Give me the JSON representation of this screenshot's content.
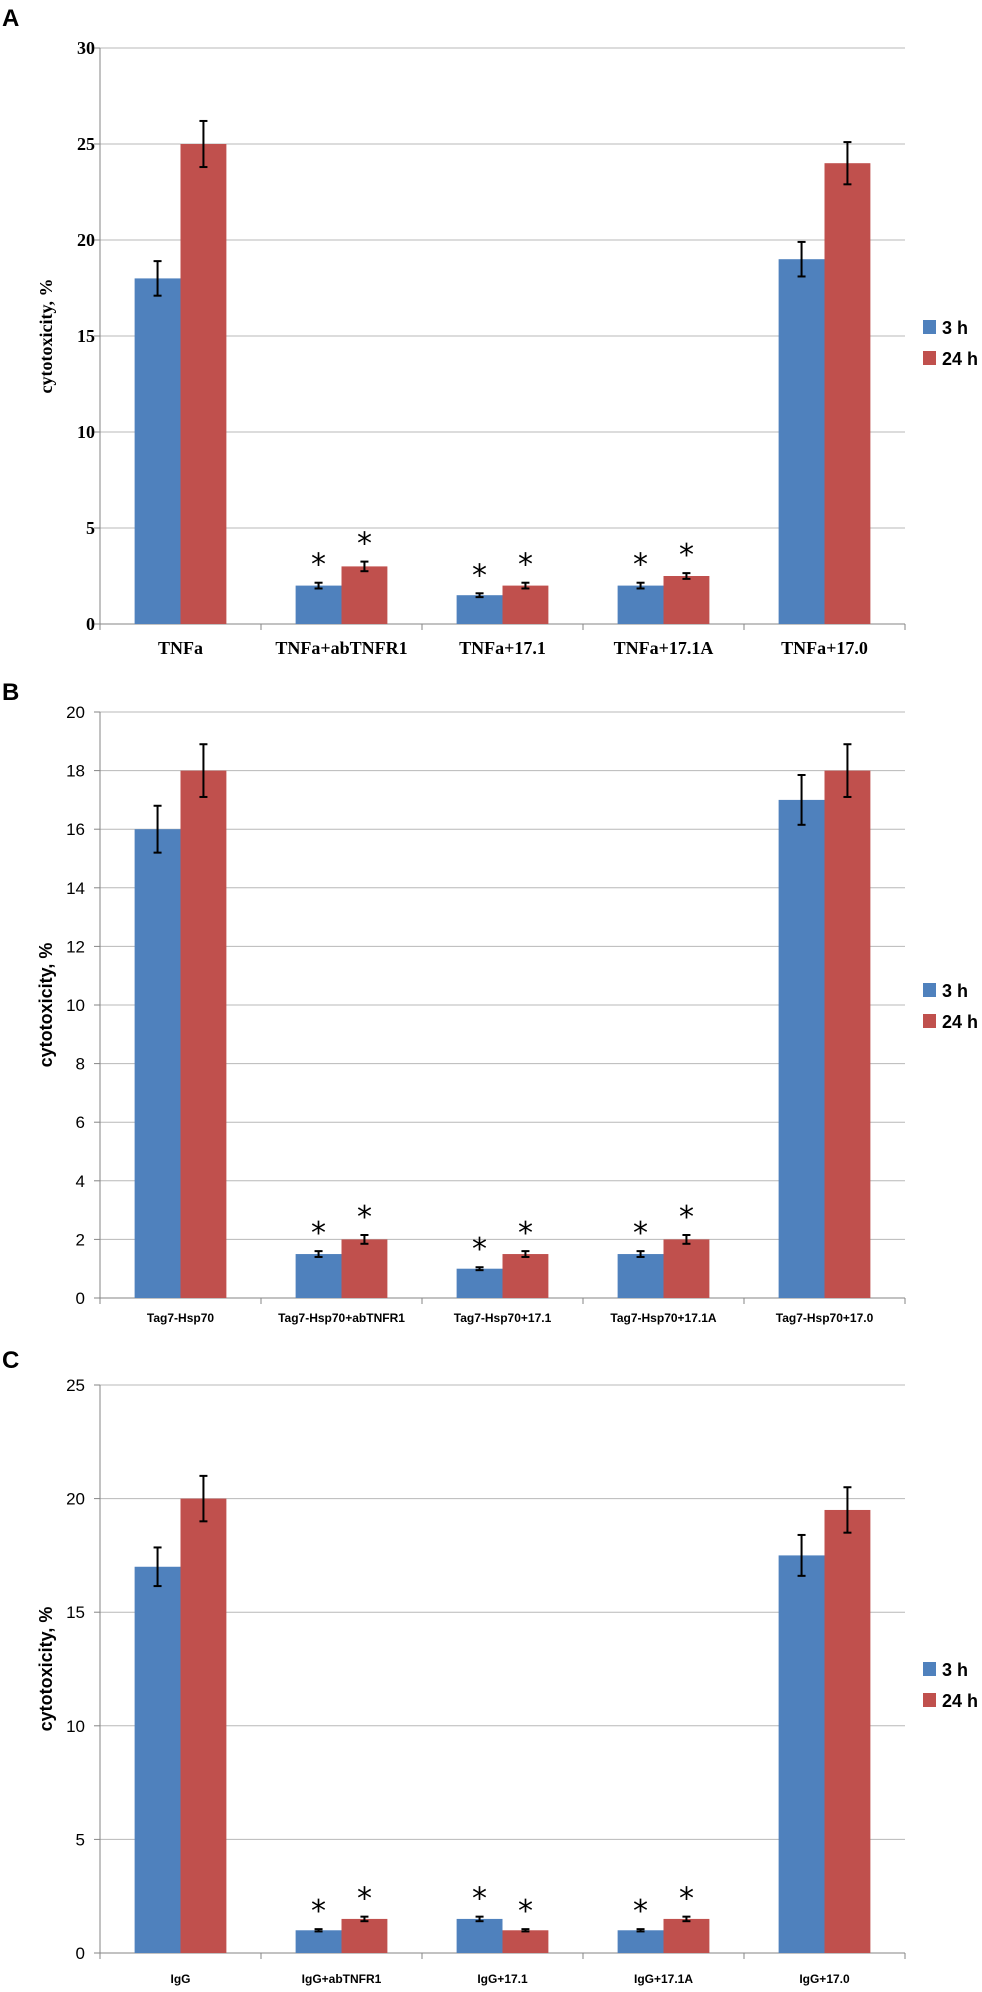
{
  "colors": {
    "series_3h": "#4f81bd",
    "series_24h": "#c0504d",
    "grid": "#b8b8b8",
    "axis": "#868686",
    "errorbar": "#000000"
  },
  "chart_data": [
    {
      "panel": "A",
      "type": "bar",
      "ylabel": "cytotoxicity, %",
      "ylim": [
        0,
        30
      ],
      "yticks": [
        0,
        5,
        10,
        15,
        20,
        25,
        30
      ],
      "grid": true,
      "legend": "right",
      "categories": [
        "TNFa",
        "TNFa+abTNFR1",
        "TNFa+17.1",
        "TNFa+17.1A",
        "TNFa+17.0"
      ],
      "series": [
        {
          "name": "3 h",
          "values": [
            18,
            2,
            1.5,
            2,
            19
          ],
          "errors": [
            0.9,
            0.15,
            0.1,
            0.15,
            0.9
          ]
        },
        {
          "name": "24 h",
          "values": [
            25,
            3,
            2,
            2.5,
            24
          ],
          "errors": [
            1.2,
            0.25,
            0.15,
            0.15,
            1.1
          ]
        }
      ],
      "significance_marker": "*",
      "significant_categories": [
        1,
        2,
        3
      ]
    },
    {
      "panel": "B",
      "type": "bar",
      "ylabel": "cytotoxicity, %",
      "ylim": [
        0,
        20
      ],
      "yticks": [
        0,
        2,
        4,
        6,
        8,
        10,
        12,
        14,
        16,
        18,
        20
      ],
      "grid": true,
      "legend": "right",
      "categories": [
        "Tag7-Hsp70",
        "Tag7-Hsp70+abTNFR1",
        "Tag7-Hsp70+17.1",
        "Tag7-Hsp70+17.1A",
        "Tag7-Hsp70+17.0"
      ],
      "series": [
        {
          "name": "3 h",
          "values": [
            16,
            1.5,
            1,
            1.5,
            17
          ],
          "errors": [
            0.8,
            0.1,
            0.05,
            0.1,
            0.85
          ]
        },
        {
          "name": "24 h",
          "values": [
            18,
            2,
            1.5,
            2,
            18
          ],
          "errors": [
            0.9,
            0.15,
            0.1,
            0.15,
            0.9
          ]
        }
      ],
      "significance_marker": "*",
      "significant_categories": [
        1,
        2,
        3
      ]
    },
    {
      "panel": "C",
      "type": "bar",
      "ylabel": "cytotoxicity, %",
      "ylim": [
        0,
        25
      ],
      "yticks": [
        0,
        5,
        10,
        15,
        20,
        25
      ],
      "grid": true,
      "legend": "right",
      "categories": [
        "IgG",
        "IgG+abTNFR1",
        "IgG+17.1",
        "IgG+17.1A",
        "IgG+17.0"
      ],
      "series": [
        {
          "name": "3 h",
          "values": [
            17,
            1,
            1.5,
            1,
            17.5
          ],
          "errors": [
            0.85,
            0.05,
            0.1,
            0.05,
            0.9
          ]
        },
        {
          "name": "24 h",
          "values": [
            20,
            1.5,
            1,
            1.5,
            19.5
          ],
          "errors": [
            1.0,
            0.1,
            0.05,
            0.1,
            1.0
          ]
        }
      ],
      "significance_marker": "*",
      "significant_categories": [
        1,
        2,
        3
      ]
    }
  ]
}
